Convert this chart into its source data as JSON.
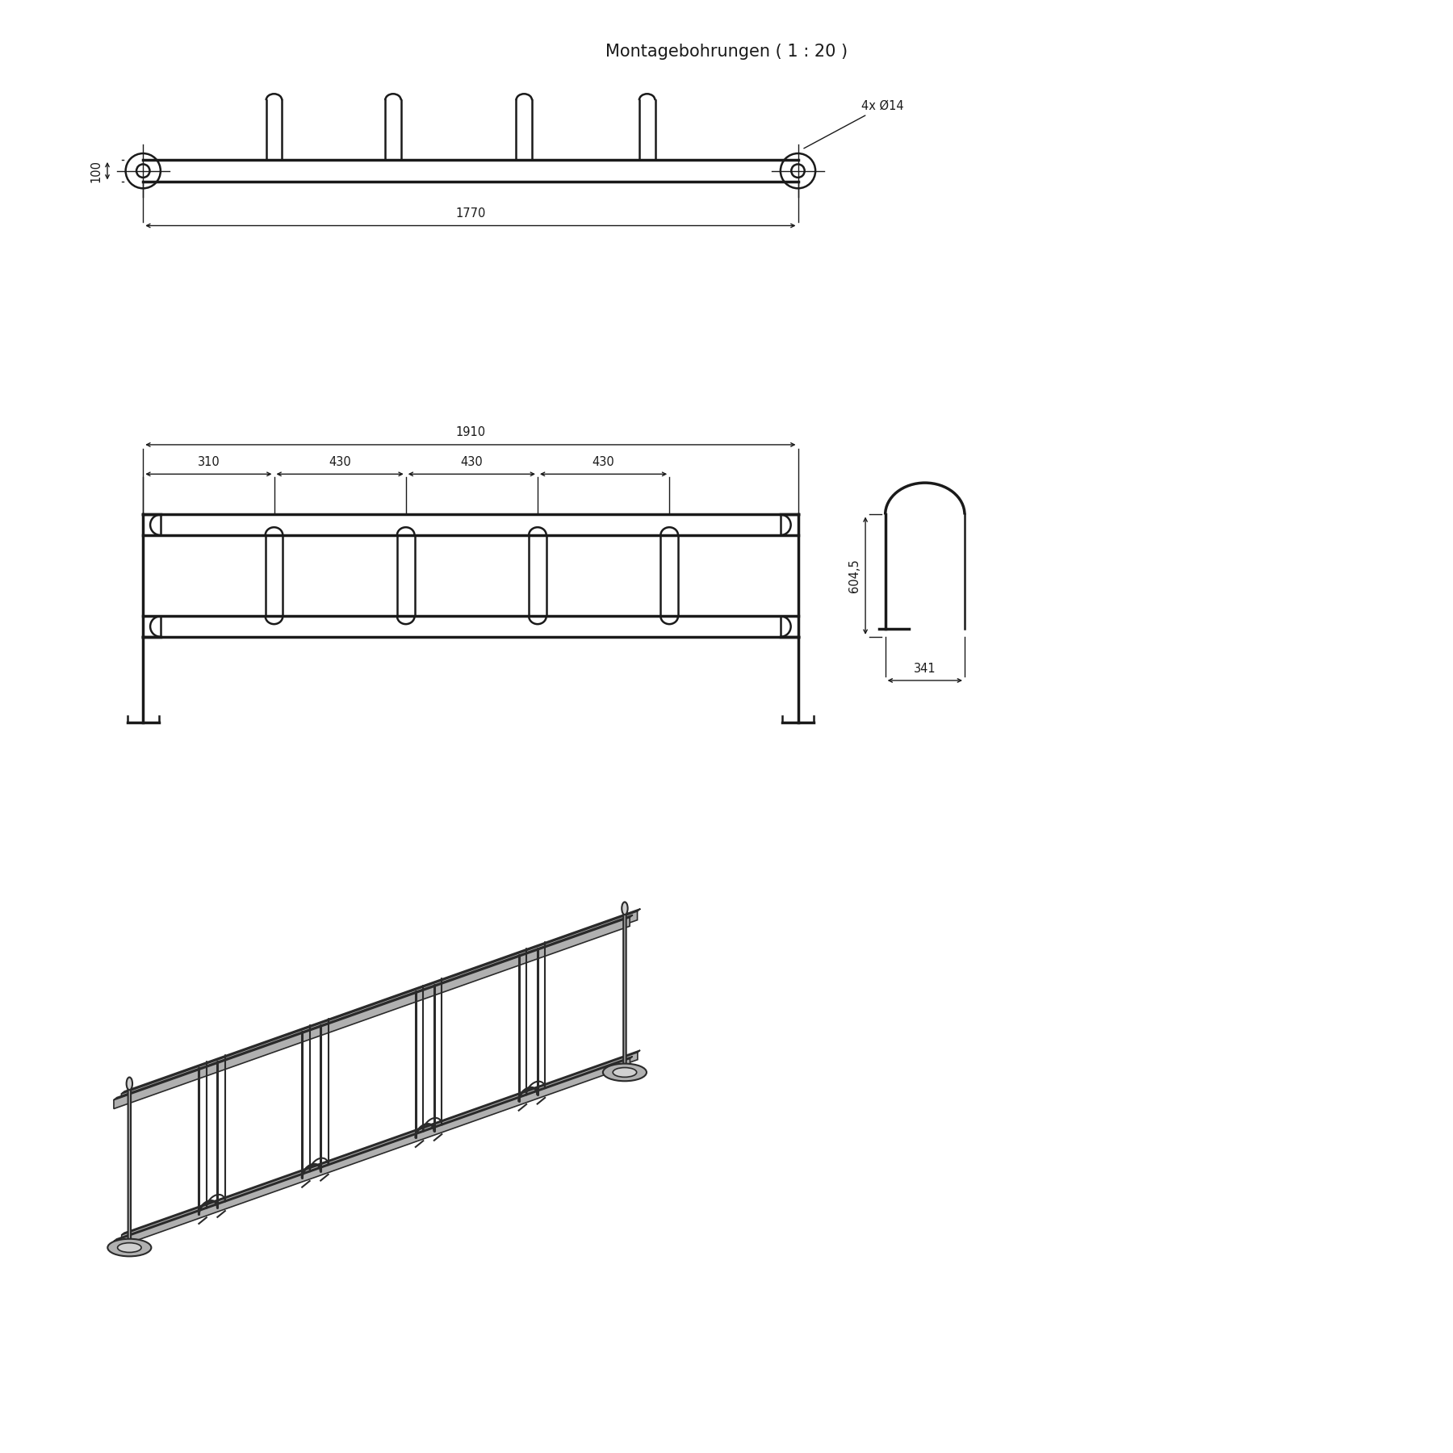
{
  "bg_color": "#ffffff",
  "line_color": "#1a1a1a",
  "title": "Montagebohrungen ( 1 : 20 )",
  "title_fontsize": 15,
  "dim_fontsize": 10.5,
  "dim_1770": "1770",
  "dim_1910": "1910",
  "dim_310": "310",
  "dim_430": "430",
  "dim_100": "100",
  "dim_604": "604,5",
  "dim_341": "341",
  "dim_4x": "4x Ø14"
}
